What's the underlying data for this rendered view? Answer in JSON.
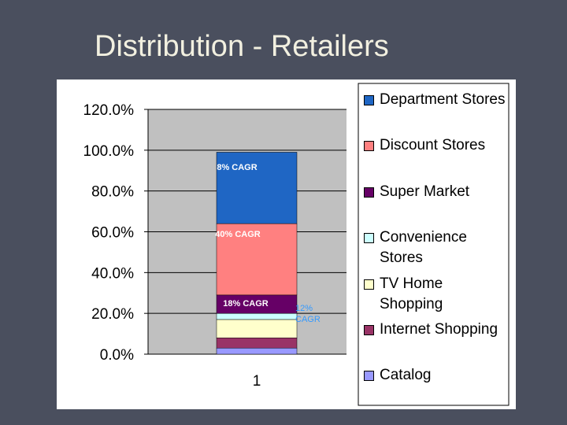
{
  "chart_data": {
    "type": "stacked-bar",
    "title": "Distribution - Retailers",
    "categories": [
      "1"
    ],
    "series": [
      {
        "name": "Department Stores",
        "color": "#1f66c4",
        "values": [
          35
        ]
      },
      {
        "name": "Discount Stores",
        "color": "#ff8080",
        "values": [
          35
        ]
      },
      {
        "name": "Super Market",
        "color": "#660066",
        "values": [
          9
        ]
      },
      {
        "name": "Convenience Stores",
        "color": "#ccffff",
        "values": [
          3
        ]
      },
      {
        "name": "TV Home Shopping",
        "color": "#ffffcc",
        "values": [
          9
        ]
      },
      {
        "name": "Internet Shopping",
        "color": "#993366",
        "values": [
          5
        ]
      },
      {
        "name": "Catalog",
        "color": "#9999ff",
        "values": [
          3
        ]
      }
    ],
    "annotations": [
      "8% CAGR",
      "40% CAGR",
      "18% CAGR",
      "12% CAGR"
    ],
    "ylim": [
      0,
      120
    ],
    "yticks": [
      {
        "value": 0,
        "label": "0.0%"
      },
      {
        "value": 20,
        "label": "20.0%"
      },
      {
        "value": 40,
        "label": "40.0%"
      },
      {
        "value": 60,
        "label": "60.0%"
      },
      {
        "value": 80,
        "label": "80.0%"
      },
      {
        "value": 100,
        "label": "100.0%"
      },
      {
        "value": 120,
        "label": "120.0%"
      }
    ],
    "grid": true
  }
}
